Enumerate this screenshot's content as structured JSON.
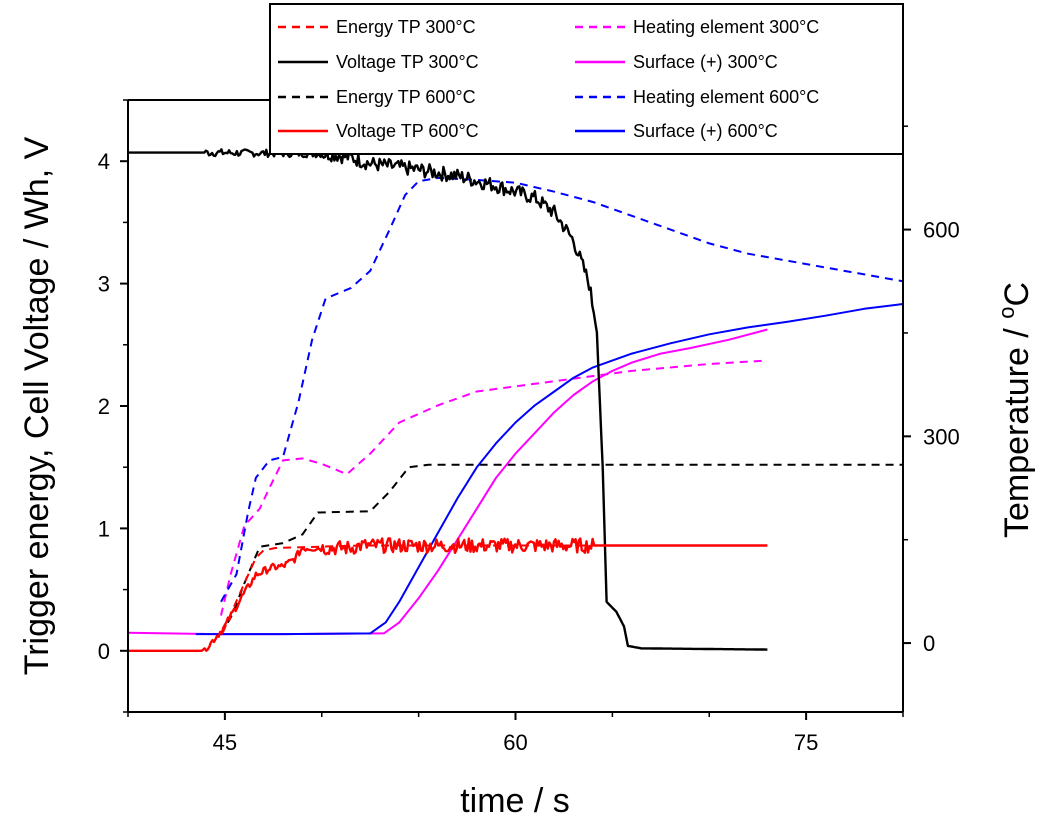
{
  "chart_data": {
    "type": "line",
    "title": "",
    "xlabel": "time / s",
    "ylabel_left": "Trigger energy, Cell Voltage / Wh, V",
    "ylabel_right_prefix": "Temperature / ",
    "ylabel_right_unit": "C",
    "ylabel_right_sup": "o",
    "xlim": [
      40,
      80
    ],
    "ylim_left": [
      -0.5,
      4.5
    ],
    "ylim_right": [
      -100,
      788
    ],
    "x_ticks": [
      45,
      60,
      75
    ],
    "x_tick_labels": [
      "45",
      "60",
      "75"
    ],
    "y_left_ticks": [
      0,
      1,
      2,
      3,
      4
    ],
    "y_left_tick_labels": [
      "0",
      "1",
      "2",
      "3",
      "4"
    ],
    "y_right_ticks": [
      0,
      300,
      600
    ],
    "y_right_tick_labels": [
      "0",
      "300",
      "600"
    ],
    "grid": false,
    "legend_position": "top",
    "series": [
      {
        "name": "Energy TP 300°C",
        "axis": "left",
        "color": "#ff0000",
        "dash": true,
        "noisy": false,
        "points": [
          [
            44.9,
            0.15
          ],
          [
            45.3,
            0.3
          ],
          [
            46.0,
            0.55
          ],
          [
            46.6,
            0.76
          ],
          [
            47.0,
            0.82
          ],
          [
            47.6,
            0.84
          ],
          [
            52.0,
            0.86
          ],
          [
            73.0,
            0.86
          ]
        ]
      },
      {
        "name": "Voltage TP 300°C",
        "axis": "left",
        "color": "#000000",
        "dash": false,
        "noisy": true,
        "points": [
          [
            40,
            4.07
          ],
          [
            44.5,
            4.07
          ],
          [
            50.5,
            4.06
          ],
          [
            51.5,
            4.03
          ],
          [
            52.5,
            3.98
          ],
          [
            55,
            3.93
          ],
          [
            57,
            3.88
          ],
          [
            59,
            3.8
          ],
          [
            61,
            3.7
          ],
          [
            62,
            3.58
          ],
          [
            63,
            3.35
          ],
          [
            63.8,
            3.0
          ],
          [
            64.2,
            2.6
          ],
          [
            64.5,
            1.5
          ],
          [
            64.7,
            0.4
          ],
          [
            65.2,
            0.32
          ],
          [
            65.6,
            0.2
          ],
          [
            65.8,
            0.04
          ],
          [
            66.5,
            0.02
          ],
          [
            73.0,
            0.01
          ]
        ]
      },
      {
        "name": "Energy TP 600°C",
        "axis": "left",
        "color": "#000000",
        "dash": true,
        "noisy": false,
        "points": [
          [
            44.8,
            0.13
          ],
          [
            45.4,
            0.3
          ],
          [
            46.0,
            0.55
          ],
          [
            46.8,
            0.85
          ],
          [
            48.0,
            0.88
          ],
          [
            49.0,
            0.95
          ],
          [
            49.8,
            1.13
          ],
          [
            52.5,
            1.14
          ],
          [
            53.5,
            1.3
          ],
          [
            54.5,
            1.5
          ],
          [
            55.5,
            1.52
          ],
          [
            80,
            1.52
          ]
        ]
      },
      {
        "name": "Voltage TP 600°C",
        "axis": "left",
        "color": "#ff0000",
        "dash": false,
        "noisy": true,
        "points": [
          [
            40,
            0.0
          ],
          [
            43.8,
            0.0
          ],
          [
            44.2,
            0.05
          ],
          [
            45.0,
            0.2
          ],
          [
            45.8,
            0.42
          ],
          [
            46.6,
            0.62
          ],
          [
            47.4,
            0.68
          ],
          [
            48.0,
            0.69
          ],
          [
            48.6,
            0.75
          ],
          [
            49.0,
            0.84
          ],
          [
            51.5,
            0.84
          ],
          [
            52.0,
            0.86
          ],
          [
            56.0,
            0.86
          ],
          [
            73.0,
            0.86
          ]
        ]
      },
      {
        "name": "Heating element 300°C",
        "axis": "right",
        "color": "#ff00ff",
        "dash": true,
        "noisy": false,
        "points": [
          [
            44.8,
            40
          ],
          [
            45.3,
            100
          ],
          [
            46.0,
            170
          ],
          [
            46.8,
            195
          ],
          [
            47.3,
            225
          ],
          [
            48.0,
            265
          ],
          [
            49.0,
            268
          ],
          [
            50.0,
            260
          ],
          [
            51.3,
            245
          ],
          [
            52.5,
            275
          ],
          [
            54.0,
            320
          ],
          [
            56.0,
            345
          ],
          [
            58.0,
            365
          ],
          [
            62.0,
            380
          ],
          [
            66.0,
            395
          ],
          [
            70.0,
            405
          ],
          [
            73.0,
            410
          ]
        ]
      },
      {
        "name": "Surface (+) 300°C",
        "axis": "right",
        "color": "#ff00ff",
        "dash": false,
        "noisy": false,
        "points": [
          [
            40,
            15
          ],
          [
            44.5,
            13
          ],
          [
            48,
            13
          ],
          [
            53.2,
            14
          ],
          [
            54.0,
            30
          ],
          [
            55.0,
            65
          ],
          [
            56.0,
            105
          ],
          [
            57.0,
            150
          ],
          [
            58.0,
            195
          ],
          [
            59.0,
            240
          ],
          [
            60.0,
            275
          ],
          [
            61.0,
            305
          ],
          [
            62.0,
            335
          ],
          [
            63.0,
            360
          ],
          [
            64.0,
            380
          ],
          [
            65.0,
            395
          ],
          [
            66.0,
            407
          ],
          [
            67.5,
            420
          ],
          [
            69.0,
            428
          ],
          [
            71.0,
            440
          ],
          [
            73.0,
            455
          ]
        ]
      },
      {
        "name": "Heating element 600°C",
        "axis": "right",
        "color": "#0000ff",
        "dash": true,
        "noisy": false,
        "points": [
          [
            44.8,
            60
          ],
          [
            45.6,
            100
          ],
          [
            46.2,
            190
          ],
          [
            46.6,
            240
          ],
          [
            47.3,
            265
          ],
          [
            48.0,
            270
          ],
          [
            48.8,
            350
          ],
          [
            49.5,
            440
          ],
          [
            50.2,
            500
          ],
          [
            51.5,
            515
          ],
          [
            52.5,
            540
          ],
          [
            53.5,
            600
          ],
          [
            54.3,
            650
          ],
          [
            55.0,
            670
          ],
          [
            56.0,
            675
          ],
          [
            58.0,
            672
          ],
          [
            60.0,
            668
          ],
          [
            62.0,
            655
          ],
          [
            64.0,
            640
          ],
          [
            66.0,
            620
          ],
          [
            68.0,
            600
          ],
          [
            70.0,
            580
          ],
          [
            72.0,
            565
          ],
          [
            74.0,
            555
          ],
          [
            76.0,
            545
          ],
          [
            78.0,
            535
          ],
          [
            80.0,
            525
          ]
        ]
      },
      {
        "name": "Surface (+) 600°C",
        "axis": "right",
        "color": "#0000ff",
        "dash": false,
        "noisy": false,
        "points": [
          [
            43.5,
            13
          ],
          [
            48,
            13
          ],
          [
            52.5,
            14
          ],
          [
            53.3,
            30
          ],
          [
            54.0,
            60
          ],
          [
            55.0,
            110
          ],
          [
            56.0,
            160
          ],
          [
            57.0,
            210
          ],
          [
            58.0,
            255
          ],
          [
            59.0,
            290
          ],
          [
            60.0,
            320
          ],
          [
            61.0,
            345
          ],
          [
            62.0,
            365
          ],
          [
            63.0,
            385
          ],
          [
            64.0,
            400
          ],
          [
            66.0,
            420
          ],
          [
            68.0,
            435
          ],
          [
            70.0,
            448
          ],
          [
            72.0,
            458
          ],
          [
            74.0,
            466
          ],
          [
            76.0,
            475
          ],
          [
            78.0,
            485
          ],
          [
            80.0,
            492
          ]
        ]
      }
    ]
  }
}
